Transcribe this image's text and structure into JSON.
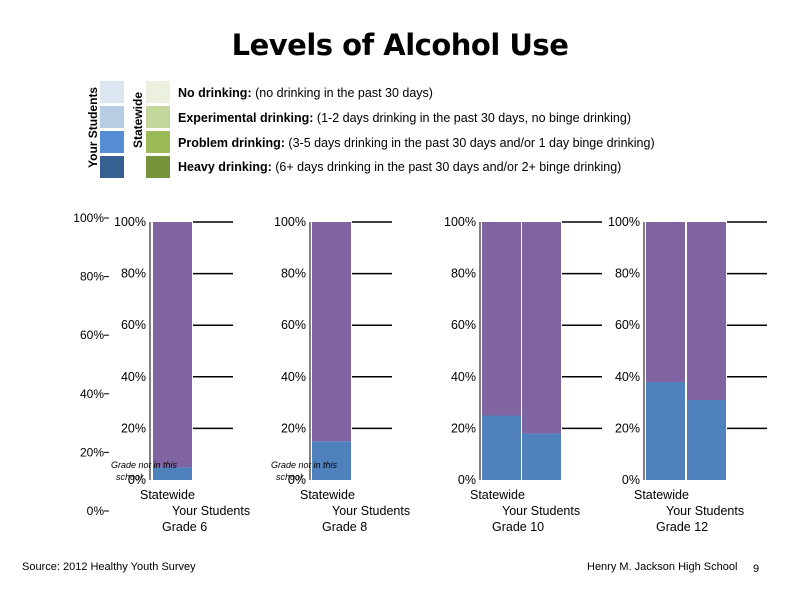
{
  "title": "Levels of Alcohol Use",
  "legend": {
    "your_students_label": "Your Students",
    "statewide_label": "Statewide",
    "your_colors": [
      "#dce6f1",
      "#b8cce4",
      "#558ed5",
      "#376092"
    ],
    "statewide_colors": [
      "#ebf1de",
      "#c3d69b",
      "#9bbb59",
      "#77933c"
    ],
    "items": [
      {
        "name": "No drinking:",
        "desc": " (no drinking in the past 30 days)"
      },
      {
        "name": "Experimental drinking:",
        "desc": " (1-2 days drinking in the past 30 days, no binge drinking)"
      },
      {
        "name": "Problem drinking:",
        "desc": " (3-5 days drinking in the past 30 days and/or 1 day binge drinking)"
      },
      {
        "name": "Heavy drinking:",
        "desc": " (6+ days drinking in the past 30 days and/or 2+ binge drinking)"
      }
    ]
  },
  "chart_data": {
    "type": "bar",
    "stacked": true,
    "y_ticks": [
      "0%",
      "20%",
      "40%",
      "60%",
      "80%",
      "100%"
    ],
    "ylim": [
      0,
      100
    ],
    "series_colors": {
      "lower": "#4f81bd",
      "upper": "#8064a2"
    },
    "panels": [
      {
        "grade": "Grade 6",
        "categories": [
          "Statewide",
          "Your Students"
        ],
        "lower": [
          5,
          null
        ],
        "upper": [
          95,
          null
        ],
        "note": "Grade not in this school"
      },
      {
        "grade": "Grade 8",
        "categories": [
          "Statewide",
          "Your Students"
        ],
        "lower": [
          15,
          null
        ],
        "upper": [
          85,
          null
        ],
        "note": "Grade not in this school"
      },
      {
        "grade": "Grade 10",
        "categories": [
          "Statewide",
          "Your Students"
        ],
        "lower": [
          25,
          18
        ],
        "upper": [
          75,
          82
        ],
        "note": ""
      },
      {
        "grade": "Grade 12",
        "categories": [
          "Statewide",
          "Your Students"
        ],
        "lower": [
          38,
          31
        ],
        "upper": [
          62,
          69
        ],
        "note": ""
      }
    ]
  },
  "footer": {
    "source": "Source: 2012 Healthy Youth Survey",
    "school": "Henry M. Jackson High School",
    "page": "9"
  }
}
